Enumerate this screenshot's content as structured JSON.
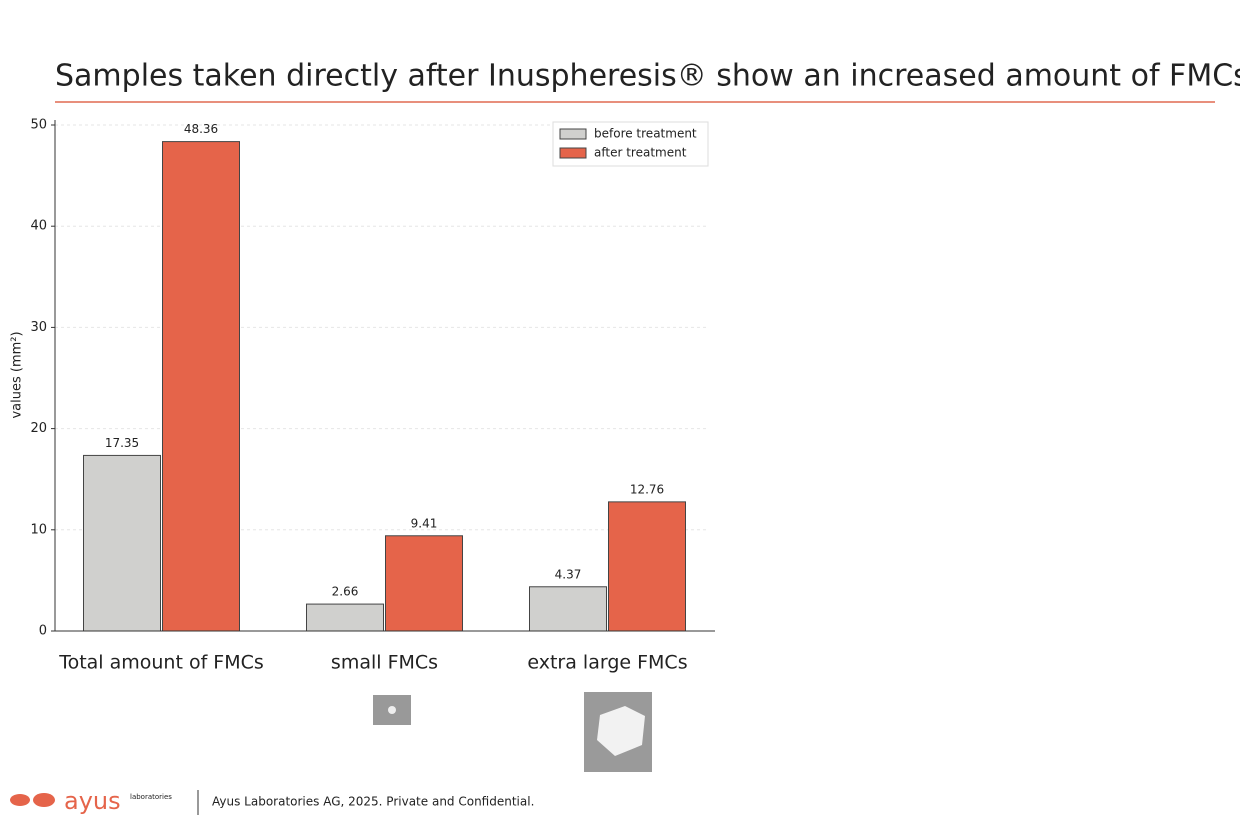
{
  "chart_data": {
    "type": "bar",
    "title": "Samples taken directly after Inuspheresis® show an increased amount of FMCs",
    "ylabel": "values (mm²)",
    "categories": [
      "Total amount of FMCs",
      "small FMCs",
      "extra large FMCs"
    ],
    "series": [
      {
        "name": "before treatment",
        "color": "#d0d0ce",
        "values": [
          17.35,
          2.66,
          4.37
        ]
      },
      {
        "name": "after treatment",
        "color": "#e5644a",
        "values": [
          48.36,
          9.41,
          12.76
        ]
      }
    ],
    "ylim": [
      0,
      50
    ],
    "yticks": [
      0,
      10,
      20,
      30,
      40,
      50
    ],
    "grid": true,
    "legend": "upper right"
  },
  "footer": {
    "brand": "ayus",
    "brand_sub": "laboratories",
    "text": "Ayus Laboratories AG, 2025. Private and Confidential."
  }
}
